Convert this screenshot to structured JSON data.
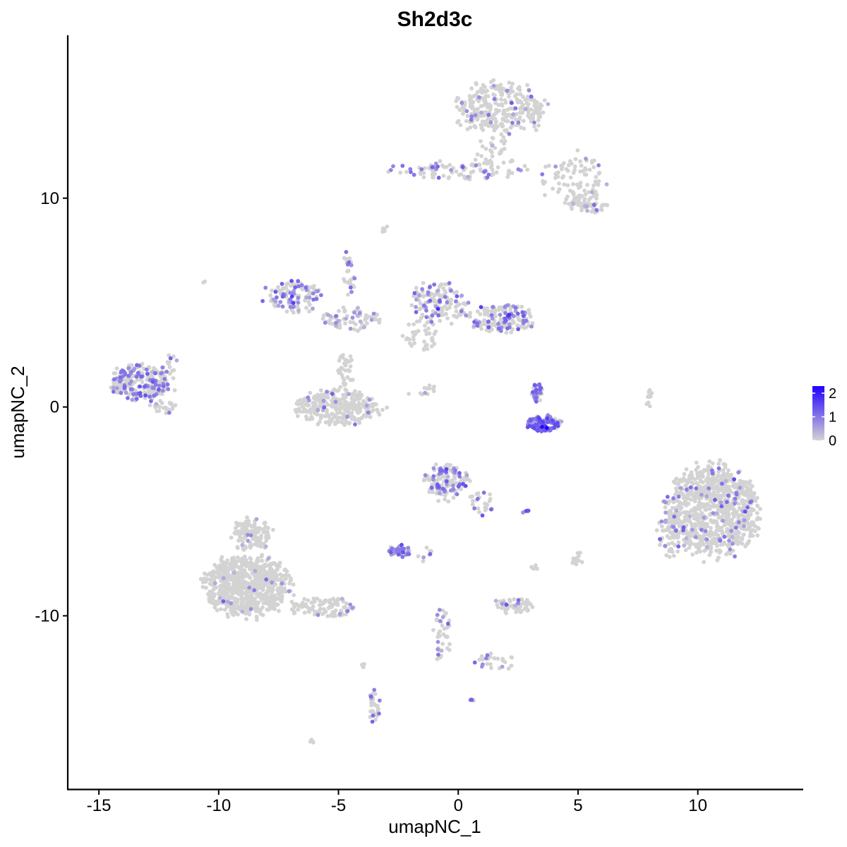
{
  "chart_data": {
    "type": "scatter",
    "title": "Sh2d3c",
    "xlabel": "umapNC_1",
    "ylabel": "umapNC_2",
    "xlim": [
      -16.3,
      14.4
    ],
    "ylim": [
      -18.3,
      17.8
    ],
    "xticks": [
      -15,
      -10,
      -5,
      0,
      5,
      10
    ],
    "xtick_labels": [
      "-15",
      "-10",
      "-5",
      "0",
      "5",
      "10"
    ],
    "yticks": [
      -10,
      0,
      10
    ],
    "ytick_labels": [
      "-10",
      "0",
      "10"
    ],
    "grid": false,
    "color_scale": {
      "low": "#d3d3d3",
      "high": "#2200ff",
      "min": 0,
      "max": 2.3,
      "ticks": [
        0,
        1,
        2
      ],
      "tick_labels": [
        "0",
        "1",
        "2"
      ],
      "position": "right"
    },
    "clusters": [
      {
        "cx": 1.8,
        "cy": 14.3,
        "rx": 2.0,
        "ry": 1.3,
        "n": 320,
        "expr_frac": 0.08,
        "expr_mean": 0.8
      },
      {
        "cx": 4.8,
        "cy": 11.0,
        "rx": 1.4,
        "ry": 1.3,
        "n": 90,
        "expr_frac": 0.06,
        "expr_mean": 0.7
      },
      {
        "cx": 5.4,
        "cy": 9.7,
        "rx": 0.9,
        "ry": 0.5,
        "n": 60,
        "expr_frac": 0.1,
        "expr_mean": 0.7
      },
      {
        "cx": 0.0,
        "cy": 11.3,
        "rx": 3.0,
        "ry": 0.5,
        "n": 90,
        "expr_frac": 0.2,
        "expr_mean": 0.9
      },
      {
        "cx": 1.5,
        "cy": 12.1,
        "rx": 1.0,
        "ry": 1.1,
        "n": 40,
        "expr_frac": 0.05,
        "expr_mean": 0.6
      },
      {
        "cx": -6.8,
        "cy": 5.3,
        "rx": 1.3,
        "ry": 0.8,
        "n": 110,
        "expr_frac": 0.4,
        "expr_mean": 0.9
      },
      {
        "cx": -4.5,
        "cy": 4.2,
        "rx": 1.4,
        "ry": 0.6,
        "n": 70,
        "expr_frac": 0.15,
        "expr_mean": 0.7
      },
      {
        "cx": -4.6,
        "cy": 6.3,
        "rx": 0.3,
        "ry": 1.2,
        "n": 25,
        "expr_frac": 0.3,
        "expr_mean": 0.9
      },
      {
        "cx": -5.0,
        "cy": 0.0,
        "rx": 1.9,
        "ry": 0.9,
        "n": 300,
        "expr_frac": 0.05,
        "expr_mean": 0.7
      },
      {
        "cx": -4.7,
        "cy": 1.8,
        "rx": 0.35,
        "ry": 1.0,
        "n": 35,
        "expr_frac": 0.02,
        "expr_mean": 0.5
      },
      {
        "cx": -0.8,
        "cy": 5.0,
        "rx": 1.2,
        "ry": 1.1,
        "n": 150,
        "expr_frac": 0.25,
        "expr_mean": 0.8
      },
      {
        "cx": 1.8,
        "cy": 4.2,
        "rx": 1.4,
        "ry": 0.7,
        "n": 170,
        "expr_frac": 0.35,
        "expr_mean": 0.9
      },
      {
        "cx": -1.6,
        "cy": 3.4,
        "rx": 0.8,
        "ry": 0.8,
        "n": 40,
        "expr_frac": 0.05,
        "expr_mean": 0.6
      },
      {
        "cx": -13.2,
        "cy": 1.2,
        "rx": 1.4,
        "ry": 0.9,
        "n": 280,
        "expr_frac": 0.3,
        "expr_mean": 0.9
      },
      {
        "cx": -12.3,
        "cy": 0.0,
        "rx": 0.6,
        "ry": 0.3,
        "n": 25,
        "expr_frac": 0.05,
        "expr_mean": 0.6
      },
      {
        "cx": -11.9,
        "cy": 2.2,
        "rx": 0.3,
        "ry": 0.5,
        "n": 10,
        "expr_frac": 0.3,
        "expr_mean": 0.8
      },
      {
        "cx": 3.6,
        "cy": -0.8,
        "rx": 0.8,
        "ry": 0.4,
        "n": 110,
        "expr_frac": 0.75,
        "expr_mean": 1.1
      },
      {
        "cx": 3.3,
        "cy": 0.7,
        "rx": 0.25,
        "ry": 0.5,
        "n": 35,
        "expr_frac": 0.7,
        "expr_mean": 1.0
      },
      {
        "cx": 10.6,
        "cy": -5.0,
        "rx": 2.0,
        "ry": 2.3,
        "n": 900,
        "expr_frac": 0.07,
        "expr_mean": 0.8
      },
      {
        "cx": 8.9,
        "cy": -6.1,
        "rx": 0.6,
        "ry": 1.2,
        "n": 60,
        "expr_frac": 0.12,
        "expr_mean": 0.8
      },
      {
        "cx": 8.0,
        "cy": 0.4,
        "rx": 0.15,
        "ry": 0.5,
        "n": 12,
        "expr_frac": 0.0,
        "expr_mean": 0.5
      },
      {
        "cx": -0.5,
        "cy": -3.6,
        "rx": 1.0,
        "ry": 0.9,
        "n": 130,
        "expr_frac": 0.35,
        "expr_mean": 0.9
      },
      {
        "cx": 1.0,
        "cy": -4.6,
        "rx": 0.6,
        "ry": 0.6,
        "n": 25,
        "expr_frac": 0.2,
        "expr_mean": 0.8
      },
      {
        "cx": -2.4,
        "cy": -6.9,
        "rx": 0.5,
        "ry": 0.3,
        "n": 40,
        "expr_frac": 0.7,
        "expr_mean": 1.0
      },
      {
        "cx": 2.8,
        "cy": -5.0,
        "rx": 0.2,
        "ry": 0.08,
        "n": 6,
        "expr_frac": 0.8,
        "expr_mean": 1.0
      },
      {
        "cx": 5.0,
        "cy": -7.2,
        "rx": 0.3,
        "ry": 0.4,
        "n": 12,
        "expr_frac": 0.0,
        "expr_mean": 0.5
      },
      {
        "cx": 2.3,
        "cy": -9.5,
        "rx": 0.8,
        "ry": 0.4,
        "n": 60,
        "expr_frac": 0.1,
        "expr_mean": 0.7
      },
      {
        "cx": -0.7,
        "cy": -10.8,
        "rx": 0.4,
        "ry": 1.5,
        "n": 40,
        "expr_frac": 0.15,
        "expr_mean": 0.8
      },
      {
        "cx": 1.5,
        "cy": -12.2,
        "rx": 1.2,
        "ry": 0.4,
        "n": 25,
        "expr_frac": 0.1,
        "expr_mean": 0.7
      },
      {
        "cx": -8.8,
        "cy": -8.6,
        "rx": 1.9,
        "ry": 1.5,
        "n": 750,
        "expr_frac": 0.02,
        "expr_mean": 0.6
      },
      {
        "cx": -8.6,
        "cy": -6.1,
        "rx": 0.9,
        "ry": 0.8,
        "n": 130,
        "expr_frac": 0.02,
        "expr_mean": 0.6
      },
      {
        "cx": -5.6,
        "cy": -9.6,
        "rx": 1.5,
        "ry": 0.5,
        "n": 110,
        "expr_frac": 0.06,
        "expr_mean": 0.7
      },
      {
        "cx": -3.5,
        "cy": -14.3,
        "rx": 0.25,
        "ry": 0.9,
        "n": 30,
        "expr_frac": 0.15,
        "expr_mean": 0.8
      },
      {
        "cx": -4.0,
        "cy": -12.5,
        "rx": 0.1,
        "ry": 0.4,
        "n": 4,
        "expr_frac": 0.0,
        "expr_mean": 0.5
      },
      {
        "cx": -6.1,
        "cy": -16.0,
        "rx": 0.15,
        "ry": 0.1,
        "n": 5,
        "expr_frac": 0.0,
        "expr_mean": 0.5
      },
      {
        "cx": 0.6,
        "cy": -14.0,
        "rx": 0.1,
        "ry": 0.08,
        "n": 5,
        "expr_frac": 0.8,
        "expr_mean": 0.9
      },
      {
        "cx": -1.4,
        "cy": -7.1,
        "rx": 0.4,
        "ry": 0.4,
        "n": 8,
        "expr_frac": 0.4,
        "expr_mean": 0.8
      },
      {
        "cx": -3.0,
        "cy": 8.5,
        "rx": 0.2,
        "ry": 0.2,
        "n": 5,
        "expr_frac": 0.0,
        "expr_mean": 0.5
      },
      {
        "cx": -10.6,
        "cy": 6.0,
        "rx": 0.1,
        "ry": 0.1,
        "n": 2,
        "expr_frac": 0.0,
        "expr_mean": 0.5
      },
      {
        "cx": -1.5,
        "cy": 0.8,
        "rx": 0.8,
        "ry": 0.4,
        "n": 12,
        "expr_frac": 0.05,
        "expr_mean": 0.6
      },
      {
        "cx": 3.2,
        "cy": -7.7,
        "rx": 0.2,
        "ry": 0.2,
        "n": 5,
        "expr_frac": 0.0,
        "expr_mean": 0.5
      }
    ],
    "high_points": [
      {
        "x": 3.7,
        "y": -1.0,
        "v": 2.3
      },
      {
        "x": 3.5,
        "y": -0.95,
        "v": 2.2
      }
    ]
  }
}
